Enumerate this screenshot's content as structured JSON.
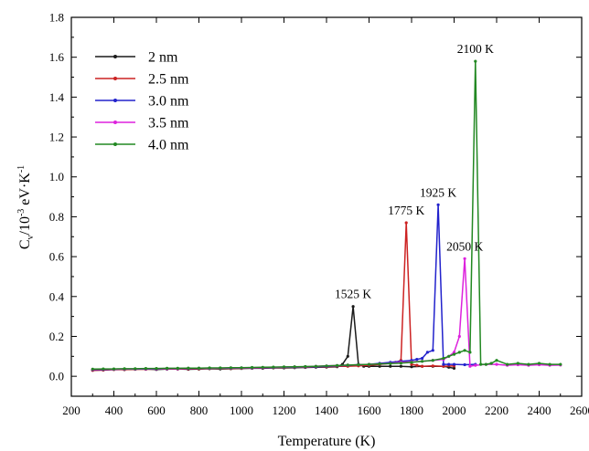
{
  "chart_data": {
    "type": "line",
    "title": "",
    "xlabel": "Temperature (K)",
    "ylabel": {
      "main": "C",
      "sub": "v",
      "mid": "/10",
      "sup1": "-3",
      "unit": " eV·K",
      "sup2": "-1"
    },
    "xlim": [
      200,
      2600
    ],
    "ylim": [
      -0.1,
      1.8
    ],
    "xticks": [
      200,
      400,
      600,
      800,
      1000,
      1200,
      1400,
      1600,
      1800,
      2000,
      2200,
      2400,
      2600
    ],
    "yticks": [
      0.0,
      0.2,
      0.4,
      0.6,
      0.8,
      1.0,
      1.2,
      1.4,
      1.6,
      1.8
    ],
    "x_tick_labels": [
      "200",
      "400",
      "600",
      "800",
      "1000",
      "1200",
      "1400",
      "1600",
      "1800",
      "2000",
      "2200",
      "2400",
      "2600"
    ],
    "y_tick_labels": [
      "0.0",
      "0.2",
      "0.4",
      "0.6",
      "0.8",
      "1.0",
      "1.2",
      "1.4",
      "1.6",
      "1.8"
    ],
    "grid": false,
    "legend_position": "top-left",
    "series": [
      {
        "name": "2 nm",
        "color": "#1a1a1a",
        "points": [
          [
            300,
            0.03
          ],
          [
            350,
            0.032
          ],
          [
            400,
            0.035
          ],
          [
            450,
            0.033
          ],
          [
            500,
            0.035
          ],
          [
            550,
            0.036
          ],
          [
            600,
            0.034
          ],
          [
            650,
            0.036
          ],
          [
            700,
            0.037
          ],
          [
            750,
            0.035
          ],
          [
            800,
            0.036
          ],
          [
            850,
            0.038
          ],
          [
            900,
            0.037
          ],
          [
            950,
            0.038
          ],
          [
            1000,
            0.039
          ],
          [
            1050,
            0.04
          ],
          [
            1100,
            0.04
          ],
          [
            1150,
            0.042
          ],
          [
            1200,
            0.042
          ],
          [
            1250,
            0.043
          ],
          [
            1300,
            0.044
          ],
          [
            1350,
            0.045
          ],
          [
            1400,
            0.046
          ],
          [
            1450,
            0.048
          ],
          [
            1475,
            0.06
          ],
          [
            1500,
            0.1
          ],
          [
            1525,
            0.35
          ],
          [
            1550,
            0.06
          ],
          [
            1575,
            0.05
          ],
          [
            1600,
            0.05
          ],
          [
            1650,
            0.05
          ],
          [
            1700,
            0.05
          ],
          [
            1750,
            0.05
          ],
          [
            1800,
            0.048
          ],
          [
            1850,
            0.05
          ],
          [
            1900,
            0.05
          ],
          [
            1950,
            0.05
          ],
          [
            1975,
            0.045
          ],
          [
            2000,
            0.04
          ]
        ]
      },
      {
        "name": "2.5 nm",
        "color": "#cc2222",
        "points": [
          [
            300,
            0.03
          ],
          [
            350,
            0.031
          ],
          [
            400,
            0.033
          ],
          [
            450,
            0.034
          ],
          [
            500,
            0.035
          ],
          [
            550,
            0.035
          ],
          [
            600,
            0.036
          ],
          [
            650,
            0.037
          ],
          [
            700,
            0.036
          ],
          [
            750,
            0.037
          ],
          [
            800,
            0.038
          ],
          [
            850,
            0.039
          ],
          [
            900,
            0.04
          ],
          [
            950,
            0.039
          ],
          [
            1000,
            0.04
          ],
          [
            1050,
            0.041
          ],
          [
            1100,
            0.042
          ],
          [
            1150,
            0.043
          ],
          [
            1200,
            0.044
          ],
          [
            1250,
            0.045
          ],
          [
            1300,
            0.046
          ],
          [
            1350,
            0.047
          ],
          [
            1400,
            0.048
          ],
          [
            1450,
            0.05
          ],
          [
            1500,
            0.05
          ],
          [
            1550,
            0.052
          ],
          [
            1600,
            0.055
          ],
          [
            1650,
            0.06
          ],
          [
            1700,
            0.065
          ],
          [
            1725,
            0.07
          ],
          [
            1750,
            0.08
          ],
          [
            1775,
            0.77
          ],
          [
            1800,
            0.06
          ],
          [
            1825,
            0.055
          ],
          [
            1850,
            0.05
          ],
          [
            1900,
            0.052
          ],
          [
            1950,
            0.05
          ],
          [
            2000,
            0.052
          ]
        ]
      },
      {
        "name": "3.0 nm",
        "color": "#2222cc",
        "points": [
          [
            300,
            0.033
          ],
          [
            350,
            0.034
          ],
          [
            400,
            0.035
          ],
          [
            450,
            0.036
          ],
          [
            500,
            0.036
          ],
          [
            550,
            0.037
          ],
          [
            600,
            0.037
          ],
          [
            650,
            0.038
          ],
          [
            700,
            0.038
          ],
          [
            750,
            0.039
          ],
          [
            800,
            0.04
          ],
          [
            850,
            0.04
          ],
          [
            900,
            0.041
          ],
          [
            950,
            0.041
          ],
          [
            1000,
            0.042
          ],
          [
            1050,
            0.042
          ],
          [
            1100,
            0.043
          ],
          [
            1150,
            0.044
          ],
          [
            1200,
            0.045
          ],
          [
            1250,
            0.046
          ],
          [
            1300,
            0.047
          ],
          [
            1350,
            0.048
          ],
          [
            1400,
            0.05
          ],
          [
            1450,
            0.052
          ],
          [
            1500,
            0.055
          ],
          [
            1550,
            0.058
          ],
          [
            1600,
            0.06
          ],
          [
            1650,
            0.065
          ],
          [
            1700,
            0.07
          ],
          [
            1750,
            0.075
          ],
          [
            1800,
            0.08
          ],
          [
            1825,
            0.085
          ],
          [
            1850,
            0.09
          ],
          [
            1875,
            0.12
          ],
          [
            1900,
            0.13
          ],
          [
            1925,
            0.86
          ],
          [
            1950,
            0.06
          ],
          [
            1975,
            0.06
          ],
          [
            2000,
            0.06
          ],
          [
            2050,
            0.058
          ],
          [
            2100,
            0.06
          ]
        ]
      },
      {
        "name": "3.5 nm",
        "color": "#dd22dd",
        "points": [
          [
            300,
            0.035
          ],
          [
            350,
            0.036
          ],
          [
            400,
            0.036
          ],
          [
            450,
            0.037
          ],
          [
            500,
            0.037
          ],
          [
            550,
            0.038
          ],
          [
            600,
            0.038
          ],
          [
            650,
            0.039
          ],
          [
            700,
            0.039
          ],
          [
            750,
            0.04
          ],
          [
            800,
            0.04
          ],
          [
            850,
            0.041
          ],
          [
            900,
            0.041
          ],
          [
            950,
            0.042
          ],
          [
            1000,
            0.042
          ],
          [
            1050,
            0.043
          ],
          [
            1100,
            0.044
          ],
          [
            1150,
            0.045
          ],
          [
            1200,
            0.046
          ],
          [
            1250,
            0.047
          ],
          [
            1300,
            0.048
          ],
          [
            1350,
            0.05
          ],
          [
            1400,
            0.052
          ],
          [
            1450,
            0.054
          ],
          [
            1500,
            0.056
          ],
          [
            1550,
            0.058
          ],
          [
            1600,
            0.06
          ],
          [
            1650,
            0.062
          ],
          [
            1700,
            0.065
          ],
          [
            1750,
            0.07
          ],
          [
            1800,
            0.072
          ],
          [
            1850,
            0.075
          ],
          [
            1900,
            0.08
          ],
          [
            1950,
            0.085
          ],
          [
            1975,
            0.1
          ],
          [
            2000,
            0.12
          ],
          [
            2025,
            0.2
          ],
          [
            2050,
            0.59
          ],
          [
            2075,
            0.05
          ],
          [
            2100,
            0.055
          ],
          [
            2150,
            0.06
          ],
          [
            2200,
            0.06
          ],
          [
            2250,
            0.055
          ],
          [
            2300,
            0.058
          ],
          [
            2350,
            0.055
          ],
          [
            2400,
            0.058
          ],
          [
            2450,
            0.055
          ],
          [
            2500,
            0.056
          ]
        ]
      },
      {
        "name": "4.0 nm",
        "color": "#228822",
        "points": [
          [
            300,
            0.036
          ],
          [
            350,
            0.037
          ],
          [
            400,
            0.037
          ],
          [
            450,
            0.038
          ],
          [
            500,
            0.038
          ],
          [
            550,
            0.039
          ],
          [
            600,
            0.039
          ],
          [
            650,
            0.04
          ],
          [
            700,
            0.04
          ],
          [
            750,
            0.041
          ],
          [
            800,
            0.041
          ],
          [
            850,
            0.042
          ],
          [
            900,
            0.042
          ],
          [
            950,
            0.043
          ],
          [
            1000,
            0.043
          ],
          [
            1050,
            0.044
          ],
          [
            1100,
            0.045
          ],
          [
            1150,
            0.046
          ],
          [
            1200,
            0.047
          ],
          [
            1250,
            0.048
          ],
          [
            1300,
            0.049
          ],
          [
            1350,
            0.05
          ],
          [
            1400,
            0.052
          ],
          [
            1450,
            0.054
          ],
          [
            1500,
            0.056
          ],
          [
            1550,
            0.058
          ],
          [
            1600,
            0.06
          ],
          [
            1650,
            0.062
          ],
          [
            1700,
            0.064
          ],
          [
            1750,
            0.066
          ],
          [
            1800,
            0.07
          ],
          [
            1850,
            0.075
          ],
          [
            1900,
            0.08
          ],
          [
            1950,
            0.09
          ],
          [
            1975,
            0.1
          ],
          [
            2000,
            0.11
          ],
          [
            2025,
            0.12
          ],
          [
            2050,
            0.13
          ],
          [
            2075,
            0.12
          ],
          [
            2100,
            1.58
          ],
          [
            2125,
            0.06
          ],
          [
            2150,
            0.06
          ],
          [
            2175,
            0.065
          ],
          [
            2200,
            0.08
          ],
          [
            2250,
            0.06
          ],
          [
            2300,
            0.065
          ],
          [
            2350,
            0.06
          ],
          [
            2400,
            0.065
          ],
          [
            2450,
            0.06
          ],
          [
            2500,
            0.06
          ]
        ]
      }
    ],
    "annotations": [
      {
        "text": "1525 K",
        "x": 1525,
        "y": 0.35
      },
      {
        "text": "1775 K",
        "x": 1775,
        "y": 0.77
      },
      {
        "text": "1925 K",
        "x": 1925,
        "y": 0.86
      },
      {
        "text": "2050 K",
        "x": 2050,
        "y": 0.59
      },
      {
        "text": "2100 K",
        "x": 2100,
        "y": 1.58
      }
    ]
  }
}
